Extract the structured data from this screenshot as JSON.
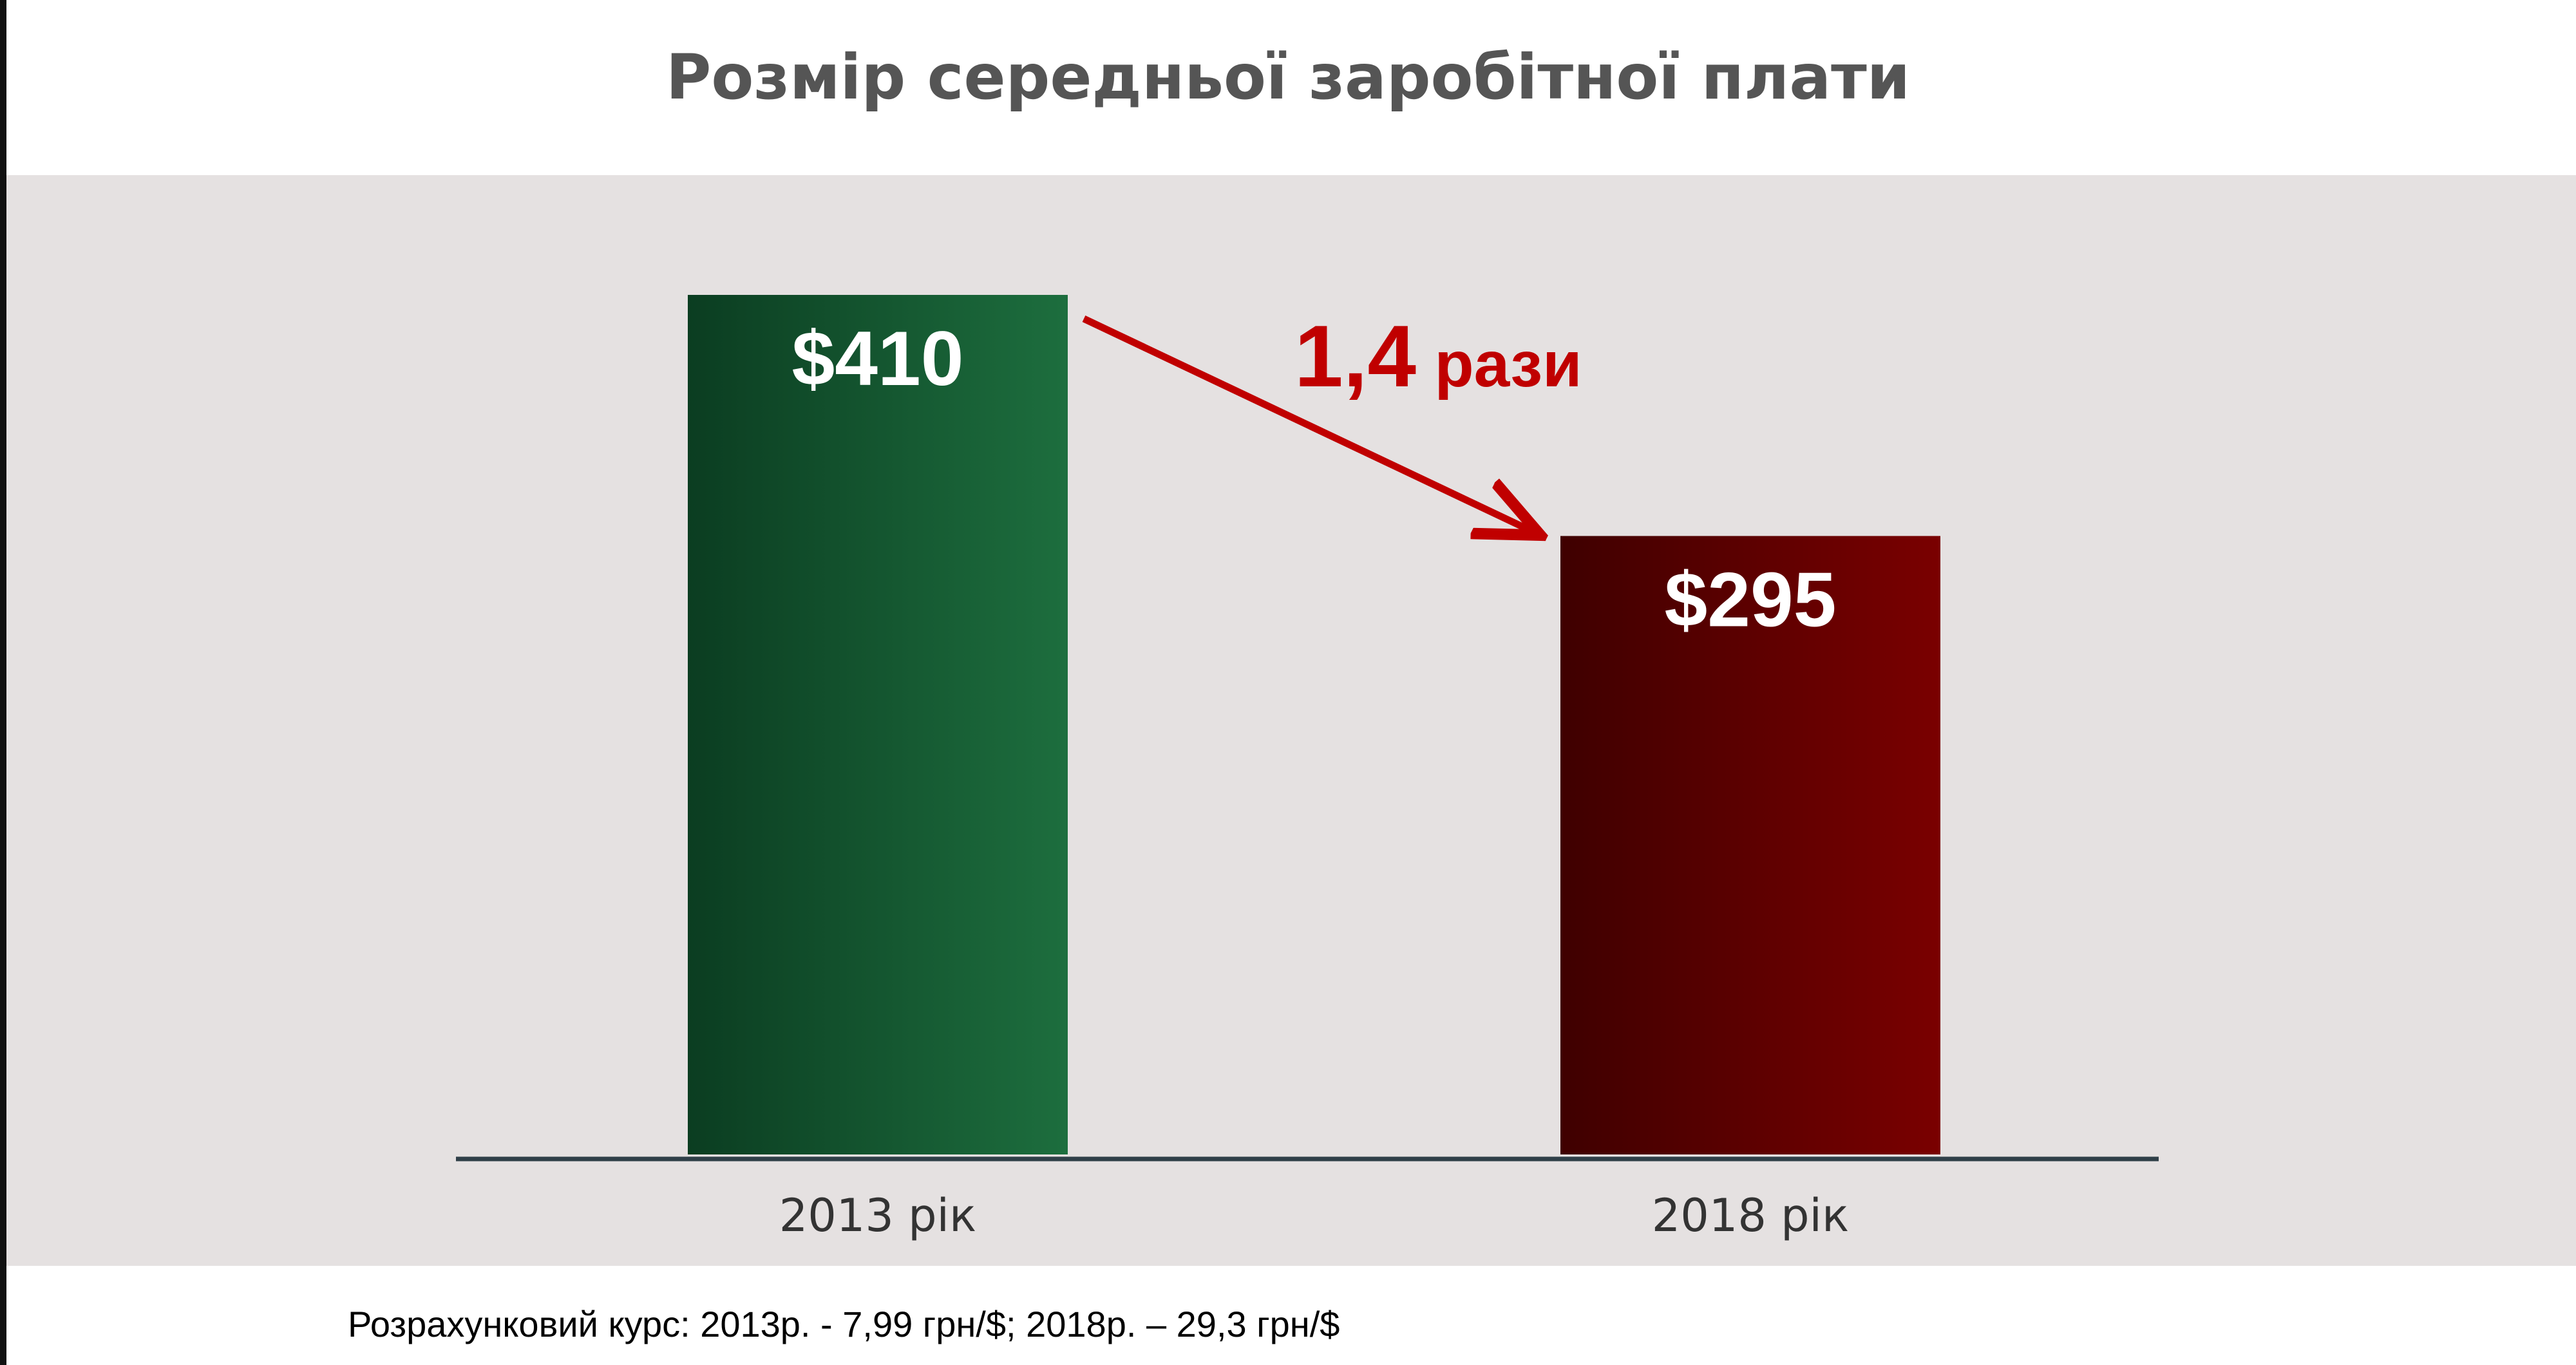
{
  "title": "Розмір середньої заробітної плати",
  "footnote": "Розрахунковий курс: 2013р. - 7,99 грн/$; 2018р. – 29,3 грн/$",
  "chart_data": {
    "type": "bar",
    "categories": [
      "2013 рік",
      "2018 рік"
    ],
    "values": [
      410,
      295
    ],
    "data_labels": [
      "$410",
      "$295"
    ],
    "ylim": [
      0,
      410
    ],
    "grid": false,
    "legend": "none",
    "annotation": {
      "number": "1,4",
      "unit": "рази",
      "color": "#c00000"
    },
    "colors": {
      "bar_2013": [
        "#0b3d21",
        "#1d6e3e"
      ],
      "bar_2018": [
        "#3f0000",
        "#7a0000"
      ],
      "axis": "#2f3f48",
      "tick_label": "#333333",
      "panel_background": "#e5e1e1"
    }
  }
}
